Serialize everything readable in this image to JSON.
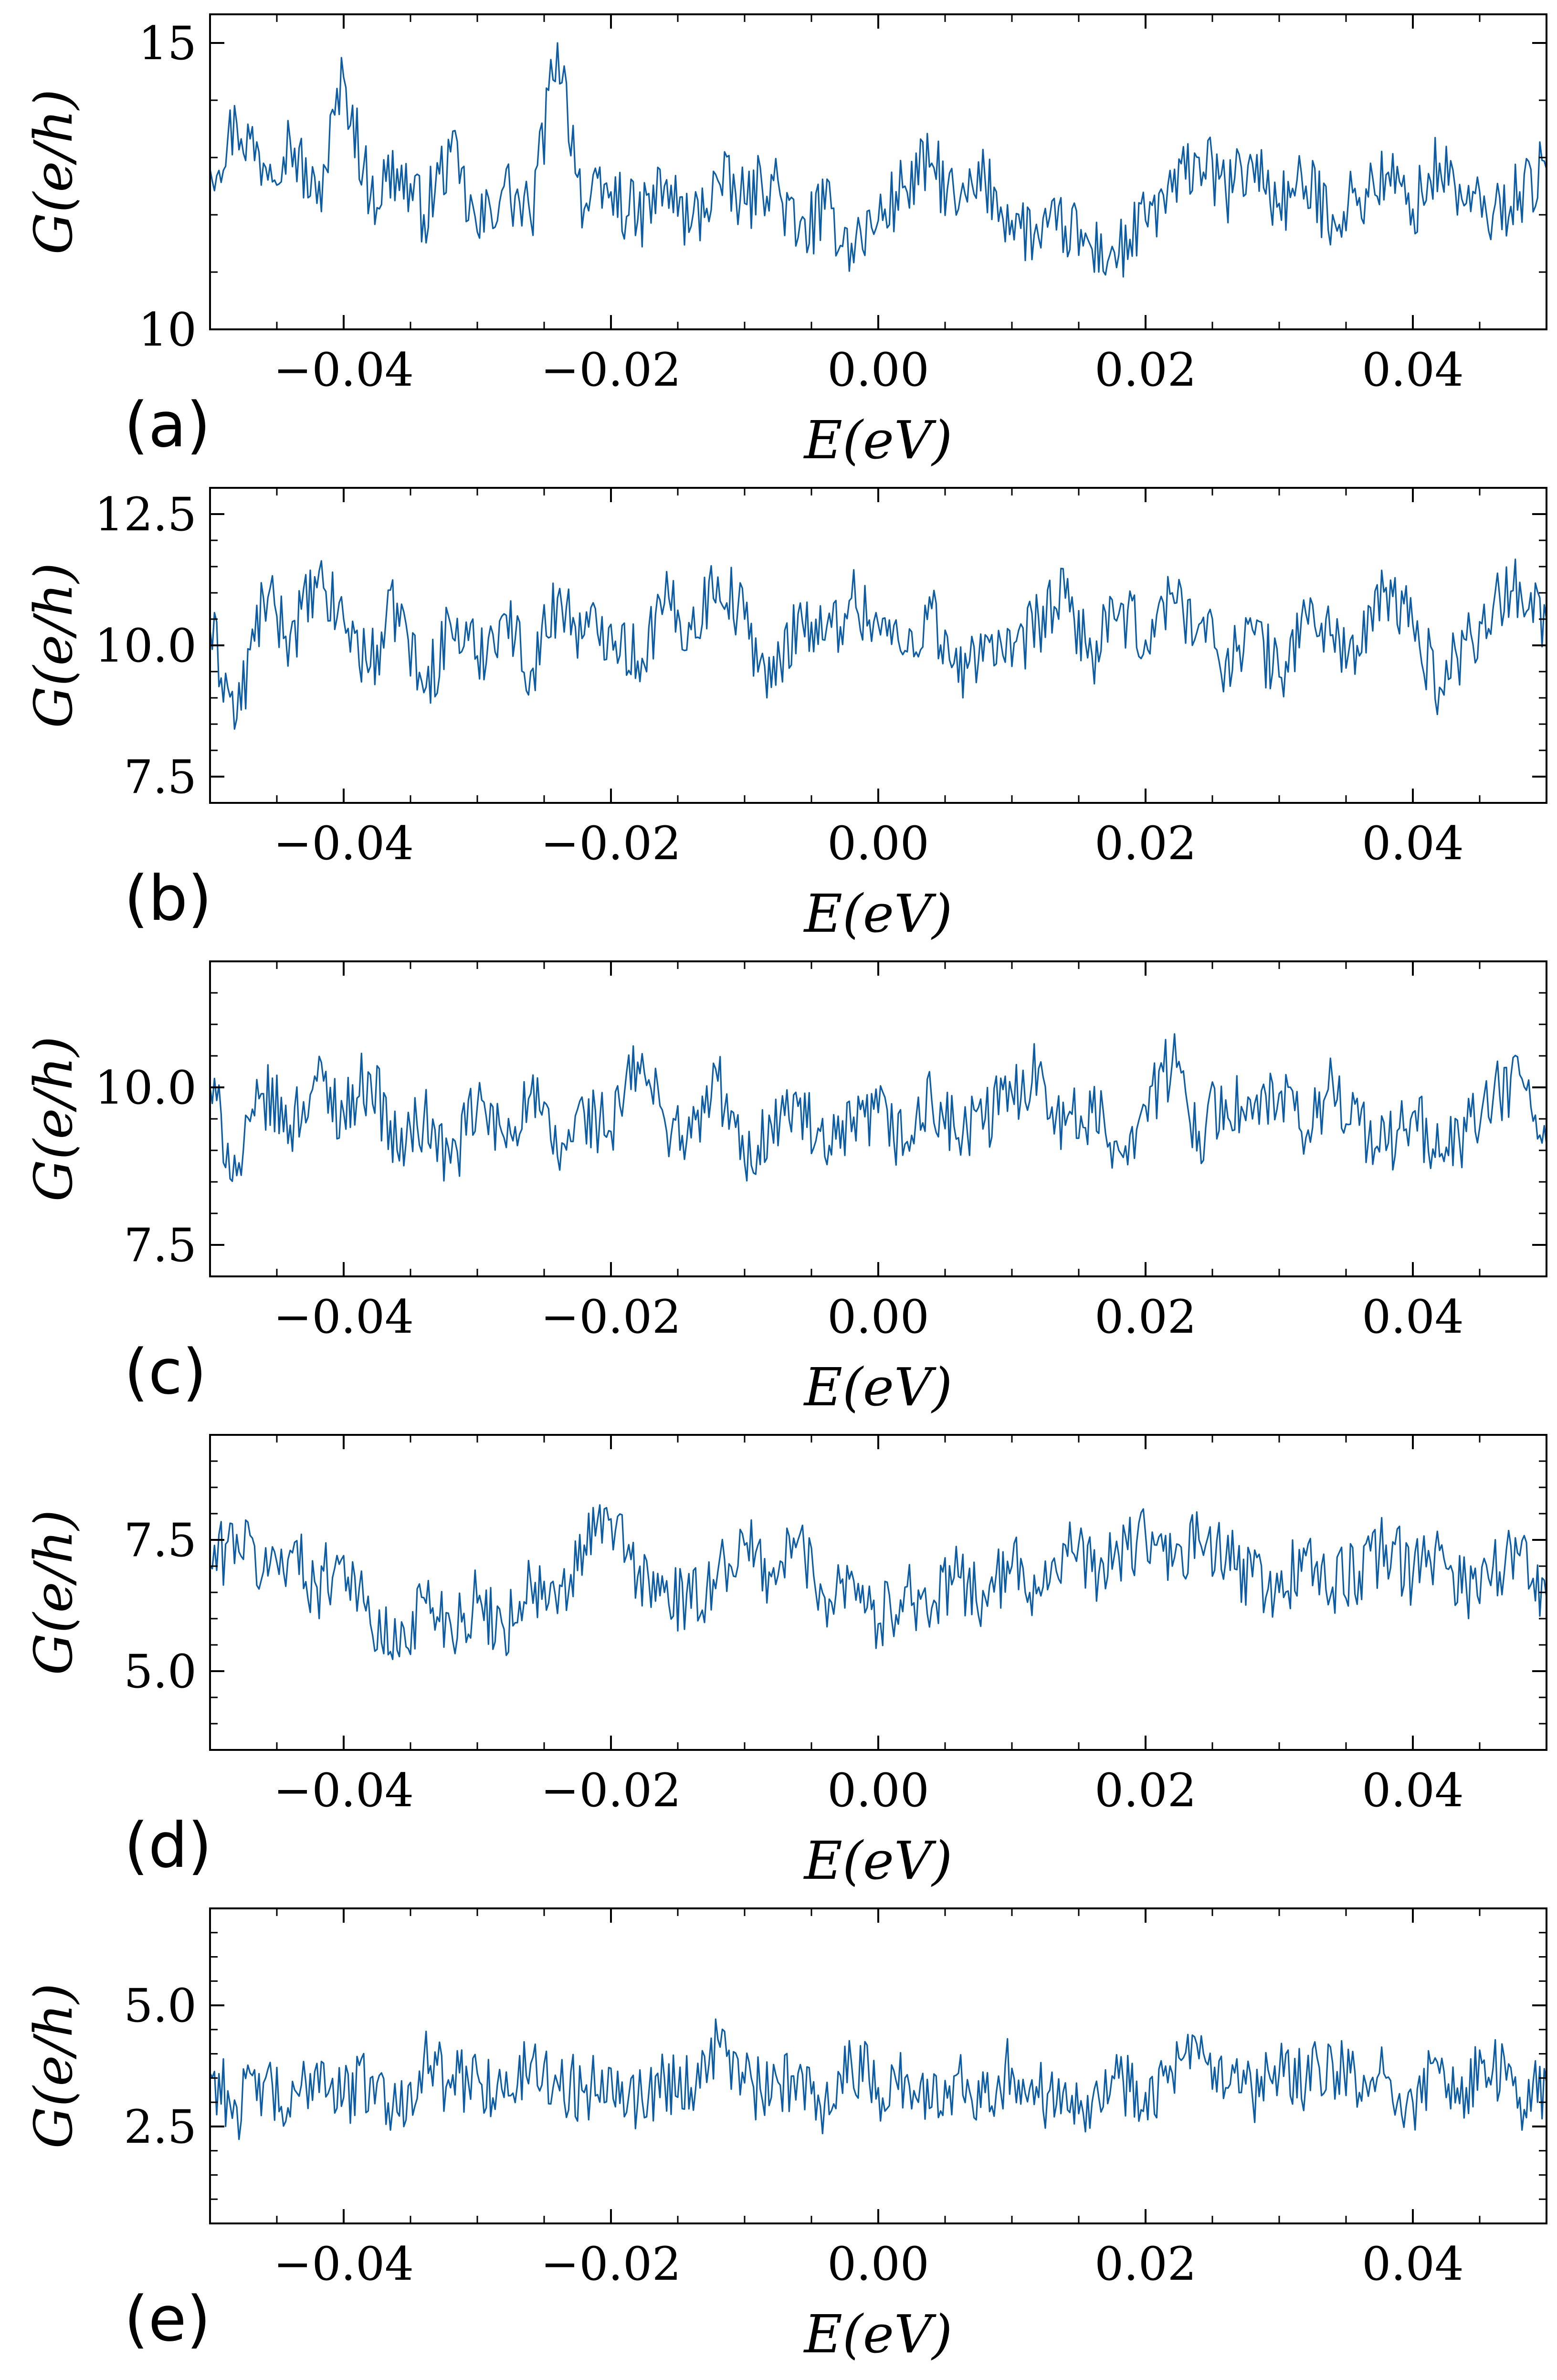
{
  "chart_data": [
    {
      "type": "line",
      "panel_label": "(a)",
      "xlabel": "E(eV)",
      "ylabel": "G(e/h)",
      "xlim": [
        -0.05,
        0.05
      ],
      "ylim": [
        10,
        15.5
      ],
      "xticks": [
        -0.04,
        -0.02,
        0.0,
        0.02,
        0.04
      ],
      "xtick_labels": [
        "−0.04",
        "−0.02",
        "0.00",
        "0.02",
        "0.04"
      ],
      "yticks": [
        10,
        15
      ],
      "ytick_labels": [
        "10",
        "15"
      ],
      "color": "#0C5DA5",
      "series": [
        {
          "x": [
            -0.05,
            -0.048,
            -0.046,
            -0.044,
            -0.042,
            -0.04,
            -0.038,
            -0.036,
            -0.034,
            -0.032,
            -0.03,
            -0.028,
            -0.026,
            -0.024,
            -0.022,
            -0.02,
            -0.018,
            -0.016,
            -0.014,
            -0.012,
            -0.01,
            -0.008,
            -0.006,
            -0.004,
            -0.002,
            0.0,
            0.002,
            0.004,
            0.006,
            0.008,
            0.01,
            0.012,
            0.014,
            0.016,
            0.018,
            0.02,
            0.022,
            0.024,
            0.026,
            0.028,
            0.03,
            0.032,
            0.034,
            0.036,
            0.038,
            0.04,
            0.042,
            0.044,
            0.046,
            0.048,
            0.05
          ],
          "y": [
            12.8,
            13.6,
            12.9,
            13.3,
            12.2,
            14.4,
            12.3,
            12.8,
            12.0,
            13.1,
            11.7,
            12.5,
            11.9,
            15.0,
            12.1,
            12.4,
            11.9,
            12.5,
            11.8,
            12.6,
            12.2,
            12.7,
            11.6,
            12.1,
            11.5,
            11.9,
            12.5,
            12.9,
            12.1,
            12.6,
            11.9,
            11.6,
            11.8,
            11.4,
            11.3,
            11.9,
            12.4,
            13.0,
            12.4,
            12.9,
            12.2,
            12.5,
            12.0,
            12.3,
            12.7,
            12.1,
            12.9,
            12.2,
            12.0,
            12.4,
            12.8
          ]
        }
      ]
    },
    {
      "type": "line",
      "panel_label": "(b)",
      "xlabel": "E(eV)",
      "ylabel": "G(e/h)",
      "xlim": [
        -0.05,
        0.05
      ],
      "ylim": [
        7.0,
        13.0
      ],
      "xticks": [
        -0.04,
        -0.02,
        0.0,
        0.02,
        0.04
      ],
      "xtick_labels": [
        "−0.04",
        "−0.02",
        "0.00",
        "0.02",
        "0.04"
      ],
      "yticks": [
        7.5,
        10.0,
        12.5
      ],
      "ytick_labels": [
        "7.5",
        "10.0",
        "12.5"
      ],
      "color": "#0C5DA5",
      "series": [
        {
          "x": [
            -0.05,
            -0.048,
            -0.046,
            -0.044,
            -0.042,
            -0.04,
            -0.038,
            -0.036,
            -0.034,
            -0.032,
            -0.03,
            -0.028,
            -0.026,
            -0.024,
            -0.022,
            -0.02,
            -0.018,
            -0.016,
            -0.014,
            -0.012,
            -0.01,
            -0.008,
            -0.006,
            -0.004,
            -0.002,
            0.0,
            0.002,
            0.004,
            0.006,
            0.008,
            0.01,
            0.012,
            0.014,
            0.016,
            0.018,
            0.02,
            0.022,
            0.024,
            0.026,
            0.028,
            0.03,
            0.032,
            0.034,
            0.036,
            0.038,
            0.04,
            0.042,
            0.044,
            0.046,
            0.048,
            0.05
          ],
          "y": [
            10.3,
            8.6,
            10.9,
            10.2,
            11.1,
            10.5,
            9.6,
            10.8,
            9.1,
            10.4,
            9.8,
            10.6,
            9.5,
            10.9,
            10.2,
            10.4,
            9.7,
            10.8,
            10.3,
            11.3,
            10.5,
            9.2,
            10.6,
            10.1,
            10.9,
            10.4,
            9.9,
            10.7,
            9.3,
            10.2,
            9.6,
            10.5,
            10.9,
            9.8,
            10.6,
            10.1,
            11.0,
            10.4,
            9.7,
            10.3,
            9.4,
            10.6,
            10.2,
            9.8,
            11.1,
            10.4,
            9.2,
            10.1,
            10.7,
            11.2,
            10.5
          ]
        }
      ]
    },
    {
      "type": "line",
      "panel_label": "(c)",
      "xlabel": "E(eV)",
      "ylabel": "G(e/h)",
      "xlim": [
        -0.05,
        0.05
      ],
      "ylim": [
        7.0,
        12.0
      ],
      "xticks": [
        -0.04,
        -0.02,
        0.0,
        0.02,
        0.04
      ],
      "xtick_labels": [
        "−0.04",
        "−0.02",
        "0.00",
        "0.02",
        "0.04"
      ],
      "yticks": [
        7.5,
        10.0
      ],
      "ytick_labels": [
        "7.5",
        "10.0"
      ],
      "color": "#0C5DA5",
      "series": [
        {
          "x": [
            -0.05,
            -0.048,
            -0.046,
            -0.044,
            -0.042,
            -0.04,
            -0.038,
            -0.036,
            -0.034,
            -0.032,
            -0.03,
            -0.028,
            -0.026,
            -0.024,
            -0.022,
            -0.02,
            -0.018,
            -0.016,
            -0.014,
            -0.012,
            -0.01,
            -0.008,
            -0.006,
            -0.004,
            -0.002,
            0.0,
            0.002,
            0.004,
            0.006,
            0.008,
            0.01,
            0.012,
            0.014,
            0.016,
            0.018,
            0.02,
            0.022,
            0.024,
            0.026,
            0.028,
            0.03,
            0.032,
            0.034,
            0.036,
            0.038,
            0.04,
            0.042,
            0.044,
            0.046,
            0.048,
            0.05
          ],
          "y": [
            10.0,
            8.6,
            9.9,
            9.4,
            10.1,
            9.6,
            10.2,
            9.0,
            9.5,
            8.8,
            9.7,
            9.2,
            9.9,
            8.9,
            9.6,
            9.3,
            10.4,
            9.5,
            9.2,
            10.1,
            8.8,
            9.4,
            9.7,
            8.9,
            9.3,
            9.6,
            9.1,
            9.8,
            9.2,
            9.5,
            9.9,
            10.3,
            9.4,
            9.6,
            9.0,
            9.7,
            10.4,
            9.3,
            9.8,
            9.5,
            9.9,
            9.2,
            10.1,
            9.4,
            9.0,
            9.6,
            8.9,
            9.3,
            9.8,
            10.2,
            9.1
          ]
        }
      ]
    },
    {
      "type": "line",
      "panel_label": "(d)",
      "xlabel": "E(eV)",
      "ylabel": "G(e/h)",
      "xlim": [
        -0.05,
        0.05
      ],
      "ylim": [
        3.5,
        9.5
      ],
      "xticks": [
        -0.04,
        -0.02,
        0.0,
        0.02,
        0.04
      ],
      "xtick_labels": [
        "−0.04",
        "−0.02",
        "0.00",
        "0.02",
        "0.04"
      ],
      "yticks": [
        5.0,
        7.5
      ],
      "ytick_labels": [
        "5.0",
        "7.5"
      ],
      "color": "#0C5DA5",
      "series": [
        {
          "x": [
            -0.05,
            -0.048,
            -0.046,
            -0.044,
            -0.042,
            -0.04,
            -0.038,
            -0.036,
            -0.034,
            -0.032,
            -0.03,
            -0.028,
            -0.026,
            -0.024,
            -0.022,
            -0.02,
            -0.018,
            -0.016,
            -0.014,
            -0.012,
            -0.01,
            -0.008,
            -0.006,
            -0.004,
            -0.002,
            0.0,
            0.002,
            0.004,
            0.006,
            0.008,
            0.01,
            0.012,
            0.014,
            0.016,
            0.018,
            0.02,
            0.022,
            0.024,
            0.026,
            0.028,
            0.03,
            0.032,
            0.034,
            0.036,
            0.038,
            0.04,
            0.042,
            0.044,
            0.046,
            0.048,
            0.05
          ],
          "y": [
            7.0,
            7.6,
            6.9,
            7.3,
            6.6,
            7.2,
            5.9,
            5.4,
            6.4,
            5.9,
            6.3,
            5.8,
            6.7,
            6.1,
            7.4,
            7.9,
            6.8,
            6.5,
            6.2,
            6.9,
            7.4,
            6.8,
            7.5,
            6.4,
            6.9,
            5.9,
            6.6,
            6.2,
            6.8,
            6.4,
            7.0,
            6.6,
            7.4,
            6.9,
            7.2,
            7.6,
            7.0,
            7.5,
            7.1,
            6.8,
            6.5,
            7.2,
            6.6,
            6.9,
            7.4,
            6.8,
            7.3,
            6.6,
            7.0,
            7.2,
            6.4
          ]
        }
      ]
    },
    {
      "type": "line",
      "panel_label": "(e)",
      "xlabel": "E(eV)",
      "ylabel": "G(e/h)",
      "xlim": [
        -0.05,
        0.05
      ],
      "ylim": [
        0.5,
        7.0
      ],
      "xticks": [
        -0.04,
        -0.02,
        0.0,
        0.02,
        0.04
      ],
      "xtick_labels": [
        "−0.04",
        "−0.02",
        "0.00",
        "0.02",
        "0.04"
      ],
      "yticks": [
        2.5,
        5.0
      ],
      "ytick_labels": [
        "2.5",
        "5.0"
      ],
      "color": "#0C5DA5",
      "series": [
        {
          "x": [
            -0.05,
            -0.048,
            -0.046,
            -0.044,
            -0.042,
            -0.04,
            -0.038,
            -0.036,
            -0.034,
            -0.032,
            -0.03,
            -0.028,
            -0.026,
            -0.024,
            -0.022,
            -0.02,
            -0.018,
            -0.016,
            -0.014,
            -0.012,
            -0.01,
            -0.008,
            -0.006,
            -0.004,
            -0.002,
            0.0,
            0.002,
            0.004,
            0.006,
            0.008,
            0.01,
            0.012,
            0.014,
            0.016,
            0.018,
            0.02,
            0.022,
            0.024,
            0.026,
            0.028,
            0.03,
            0.032,
            0.034,
            0.036,
            0.038,
            0.04,
            0.042,
            0.044,
            0.046,
            0.048,
            0.05
          ],
          "y": [
            3.6,
            2.9,
            3.4,
            2.7,
            3.8,
            3.1,
            3.5,
            2.8,
            3.9,
            3.3,
            3.6,
            3.1,
            3.8,
            3.4,
            3.2,
            3.7,
            3.0,
            3.5,
            3.3,
            4.3,
            3.4,
            3.1,
            3.6,
            3.0,
            3.8,
            3.3,
            3.5,
            2.9,
            3.6,
            3.2,
            3.7,
            3.1,
            3.4,
            3.0,
            3.5,
            3.2,
            3.6,
            3.9,
            3.3,
            3.1,
            3.6,
            3.4,
            3.8,
            3.2,
            3.5,
            3.0,
            3.6,
            3.3,
            3.7,
            3.1,
            3.4
          ]
        }
      ]
    }
  ]
}
